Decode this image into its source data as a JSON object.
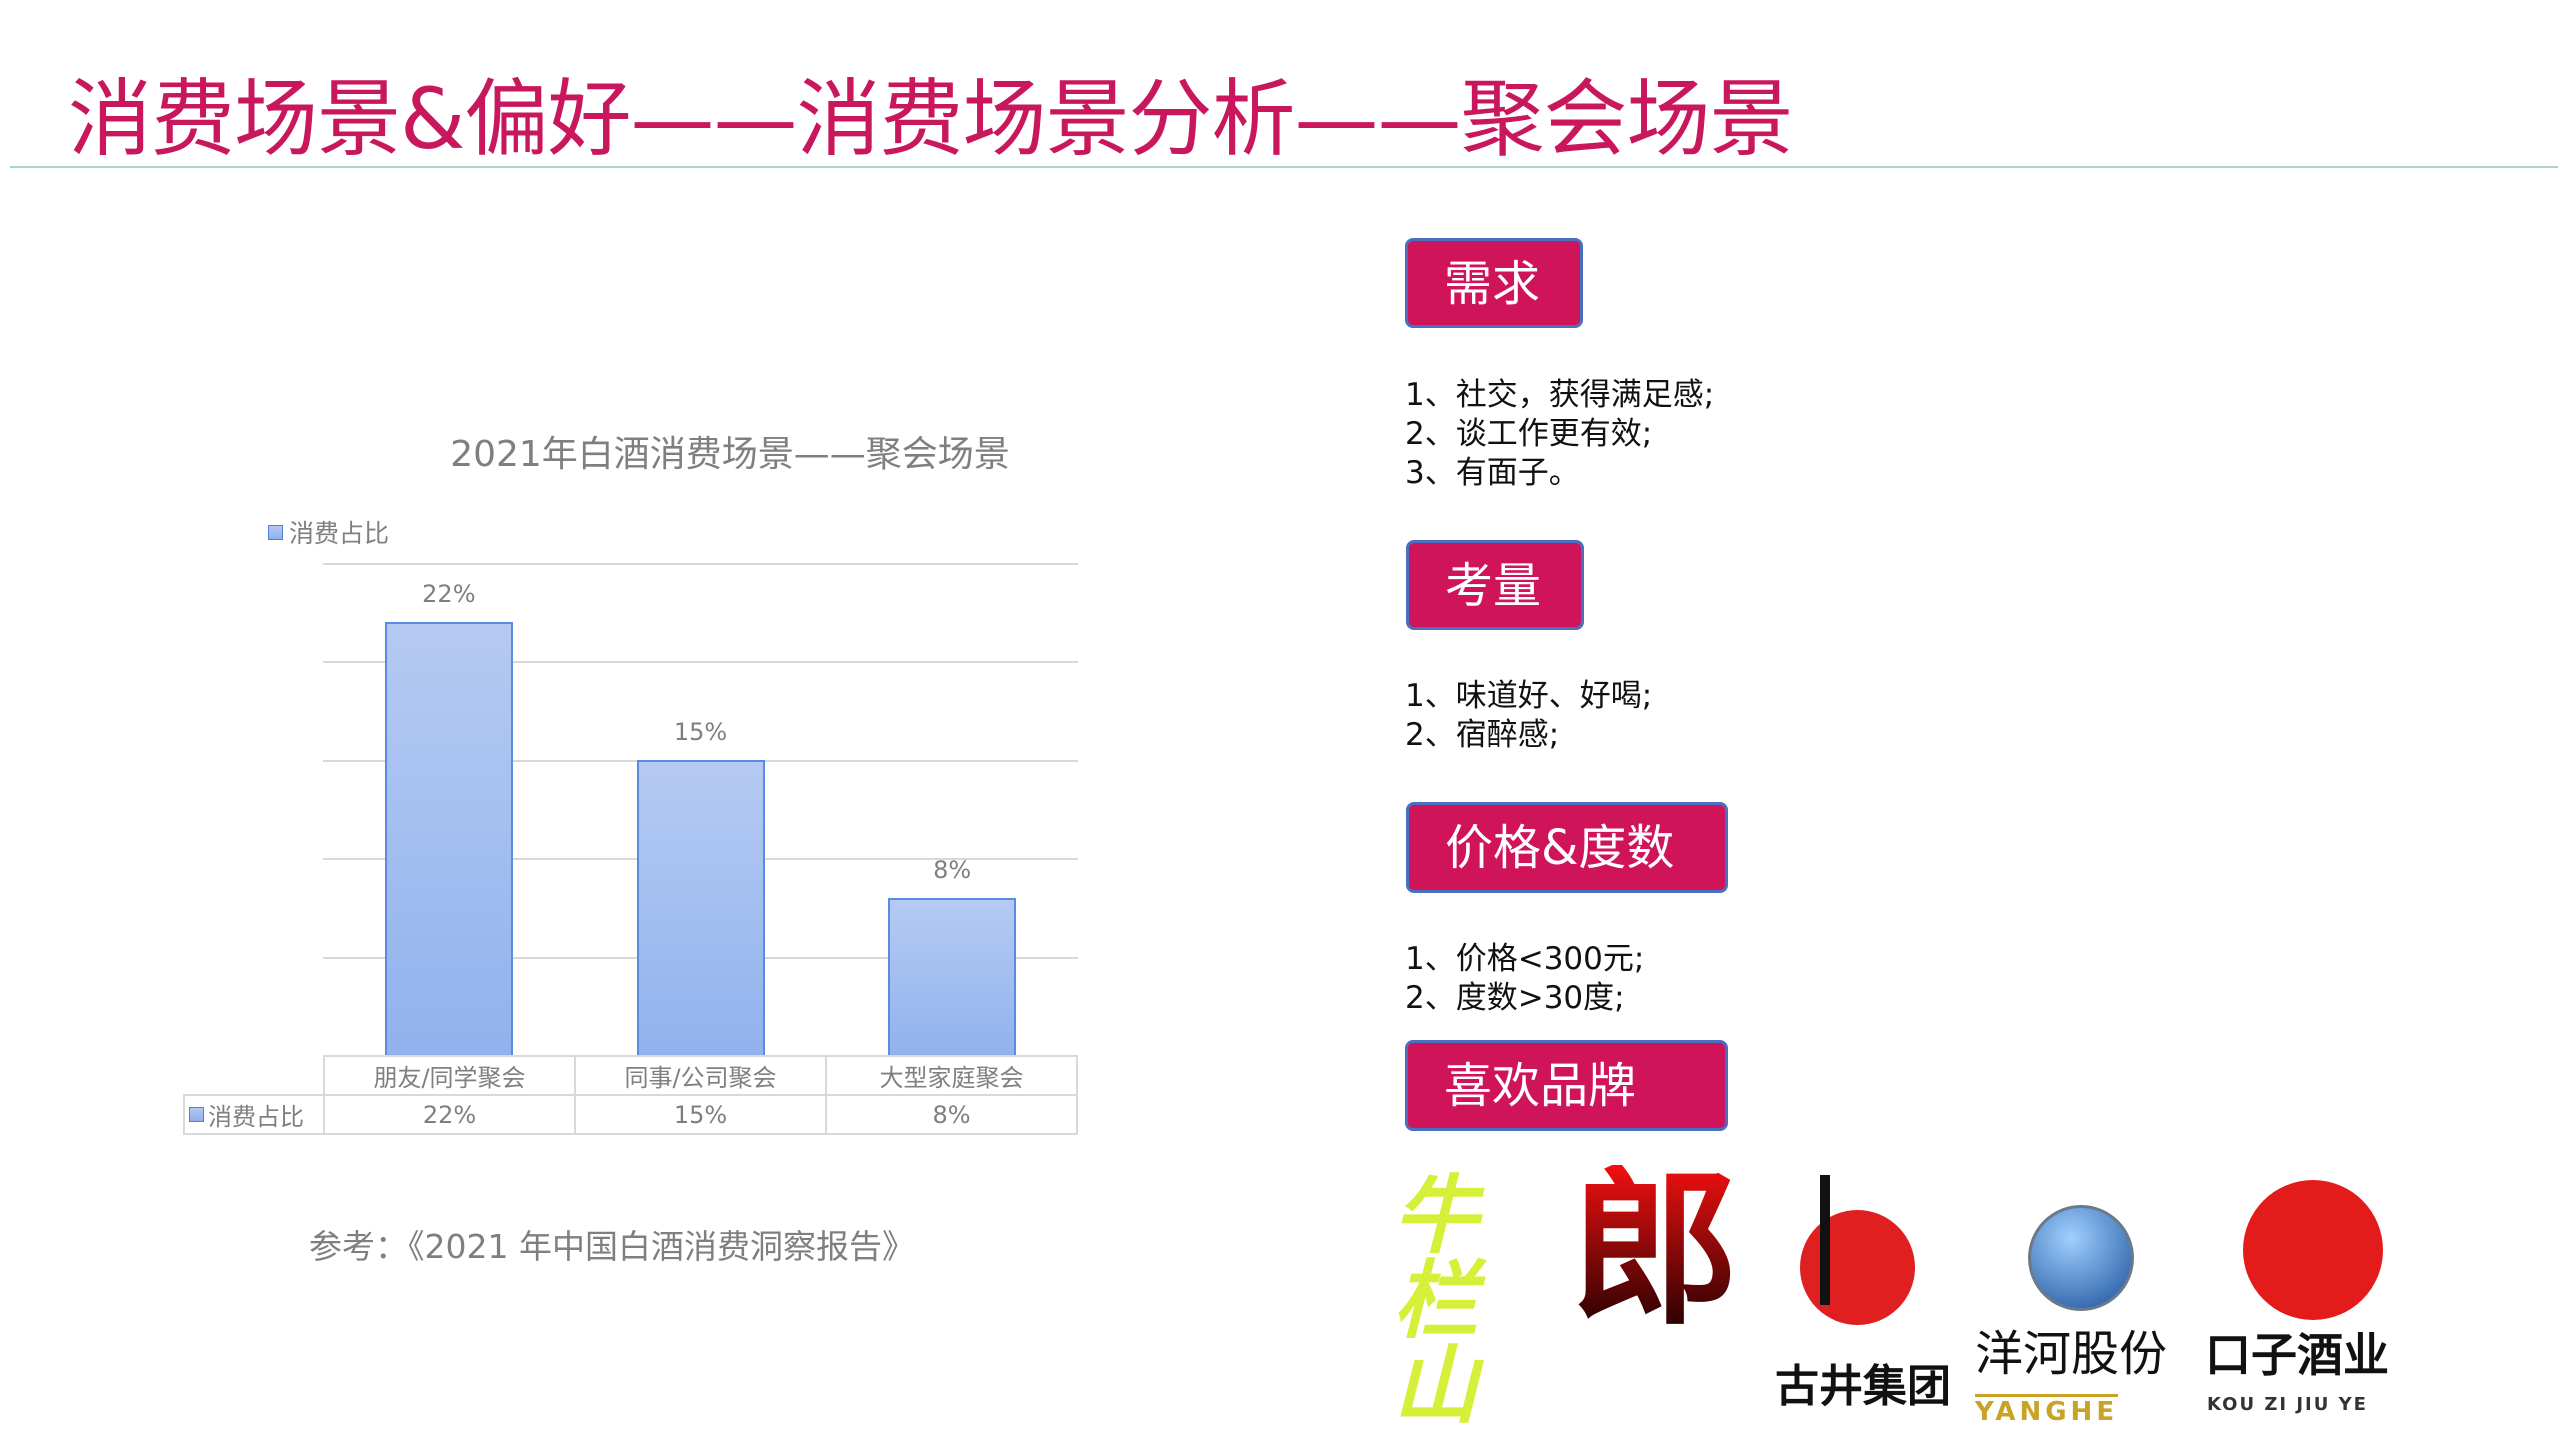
{
  "title": "消费场景&偏好——消费场景分析——聚会场景",
  "chart_data": {
    "type": "bar",
    "title": "2021年白酒消费场景——聚会场景",
    "categories": [
      "朋友/同学聚会",
      "同事/公司聚会",
      "大型家庭聚会"
    ],
    "series": [
      {
        "name": "消费占比",
        "values": [
          22,
          15,
          8
        ],
        "labels": [
          "22%",
          "15%",
          "8%"
        ]
      }
    ],
    "ylim": [
      0,
      25
    ],
    "grid": true,
    "legend": "top-left",
    "data_table": true,
    "bar_color": "#a4bff0"
  },
  "reference": "参考：《2021 年中国白酒消费洞察报告》",
  "sections": [
    {
      "badge": "需求",
      "items": [
        "1、社交，获得满足感;",
        "2、谈工作更有效;",
        "3、有面子。"
      ]
    },
    {
      "badge": "考量",
      "items": [
        "1、味道好、好喝;",
        "2、宿醉感;"
      ]
    },
    {
      "badge": "价格&度数",
      "items": [
        "1、价格<300元;",
        "2、度数>30度;"
      ]
    },
    {
      "badge": "喜欢品牌",
      "items": []
    }
  ],
  "brands": [
    "牛栏山",
    "郎",
    "古井集团",
    "洋河股份",
    "YANGHE",
    "口子酒业",
    "KOU ZI JIU YE"
  ],
  "colors": {
    "accent": "#d0145a",
    "title": "#c8175d"
  }
}
